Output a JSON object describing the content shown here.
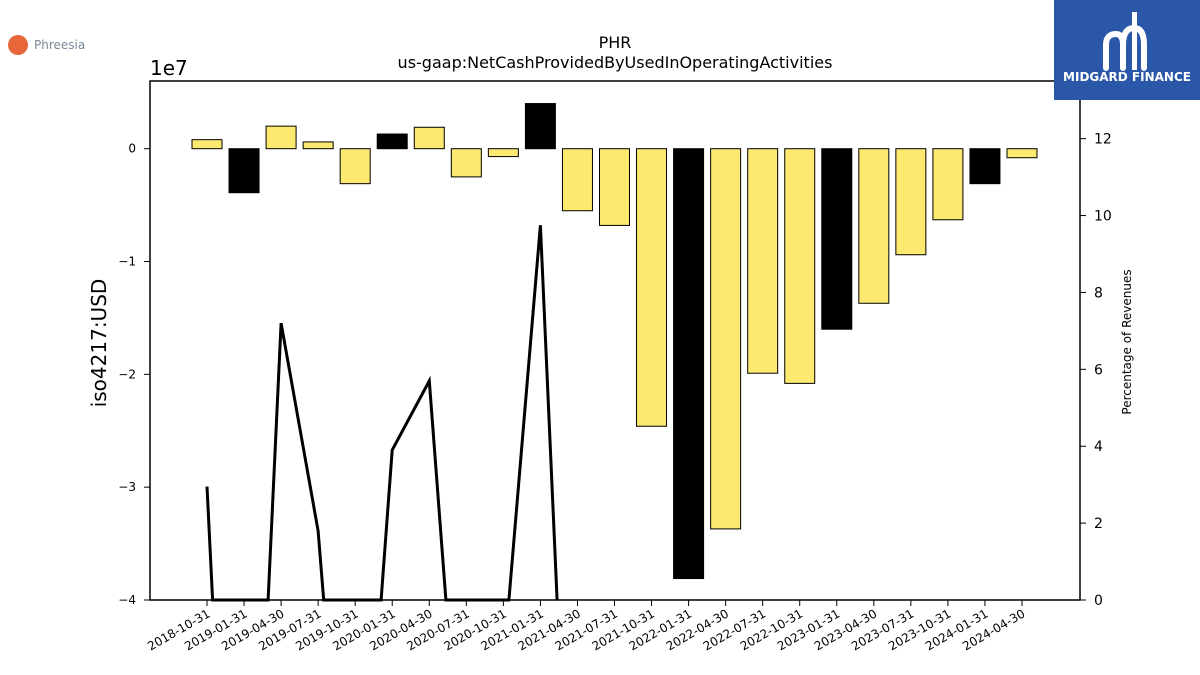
{
  "company": {
    "name": "Phreesia",
    "accent": "#e8673a"
  },
  "brand": {
    "name": "MIDGARD FINANCE",
    "bg": "#2a57a8",
    "text_color": "#ffffff"
  },
  "chart_data": {
    "type": "bar",
    "title": "PHR",
    "subtitle": "us-gaap:NetCashProvidedByUsedInOperatingActivities",
    "ylabel": "iso4217:USD",
    "y_offset_label": "1e7",
    "y2label": "Percentage of Revenues",
    "ylim": [
      -40000000,
      6000000
    ],
    "y_ticks": [
      0,
      -10000000,
      -20000000,
      -30000000,
      -40000000
    ],
    "y_tick_labels": [
      "0",
      "−1",
      "−2",
      "−3",
      "−4"
    ],
    "y2lim": [
      0,
      13.5
    ],
    "y2_ticks": [
      0,
      2,
      4,
      6,
      8,
      10,
      12
    ],
    "categories": [
      "2018-10-31",
      "2019-01-31",
      "2019-04-30",
      "2019-07-31",
      "2019-10-31",
      "2020-01-31",
      "2020-04-30",
      "2020-07-31",
      "2020-10-31",
      "2021-01-31",
      "2021-04-30",
      "2021-07-31",
      "2021-10-31",
      "2022-01-31",
      "2022-04-30",
      "2022-07-31",
      "2022-10-31",
      "2023-01-31",
      "2023-04-30",
      "2023-07-31",
      "2023-10-31",
      "2024-01-31",
      "2024-04-30"
    ],
    "series": [
      {
        "type": "bar",
        "values": [
          800000,
          -3900000,
          2000000,
          600000,
          -3100000,
          1300000,
          1900000,
          -2500000,
          -700000,
          4000000,
          -5500000,
          -6800000,
          -24600000,
          -38100000,
          -33700000,
          -19900000,
          -20800000,
          -16000000,
          -13700000,
          -9400000,
          -6300000,
          -3100000,
          -800000
        ],
        "colors": [
          "#fde870",
          "#000000",
          "#fde870",
          "#fde870",
          "#fde870",
          "#000000",
          "#fde870",
          "#fde870",
          "#fde870",
          "#000000",
          "#fde870",
          "#fde870",
          "#fde870",
          "#000000",
          "#fde870",
          "#fde870",
          "#fde870",
          "#000000",
          "#fde870",
          "#fde870",
          "#fde870",
          "#000000",
          "#fde870"
        ]
      },
      {
        "type": "line",
        "axis": "right",
        "color": "#000000",
        "points": [
          {
            "x": 0.0,
            "y": 2.95
          },
          {
            "x": 0.15,
            "y": 0
          },
          {
            "x": 1.65,
            "y": 0
          },
          {
            "x": 2.0,
            "y": 7.2
          },
          {
            "x": 3.0,
            "y": 1.8
          },
          {
            "x": 3.15,
            "y": 0
          },
          {
            "x": 4.7,
            "y": 0
          },
          {
            "x": 5.0,
            "y": 3.9
          },
          {
            "x": 6.0,
            "y": 5.7
          },
          {
            "x": 6.45,
            "y": 0
          },
          {
            "x": 8.15,
            "y": 0
          },
          {
            "x": 9.0,
            "y": 9.75
          },
          {
            "x": 9.45,
            "y": 0
          }
        ]
      }
    ],
    "grid": false,
    "legend": "none"
  }
}
